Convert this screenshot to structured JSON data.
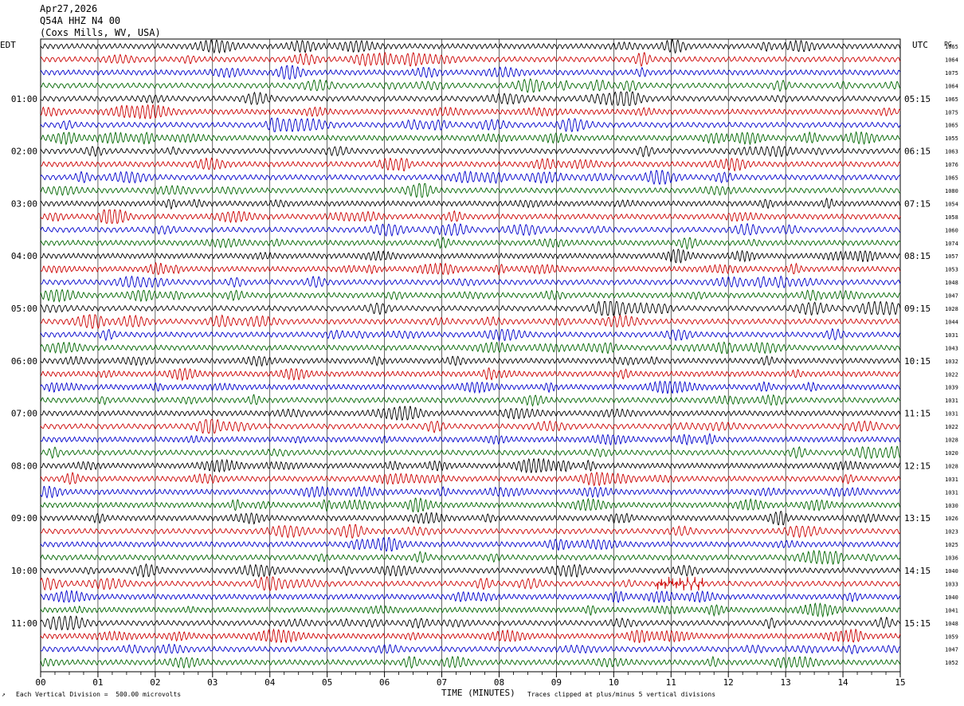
{
  "header": {
    "date": "Apr27,2026",
    "station": "Q54A HHZ N4 00",
    "location": "(Coxs Mills, WV, USA)"
  },
  "left_zone_label": "EDT",
  "right_zone_label": "UTC",
  "right_col_label": "PG",
  "xlabel": "TIME (MINUTES)",
  "scale_note": "Each Vertical Division =  500.00 microvolts",
  "clip_note": "Traces clipped at plus/minus 5 vertical divisions",
  "colors": {
    "trace_cycle": [
      "#000000",
      "#cc0000",
      "#0000cc",
      "#006600"
    ],
    "grid": "#000000"
  },
  "chart_data": {
    "type": "line",
    "title": "Q54A HHZ N4 00",
    "xlim": [
      0,
      15
    ],
    "x_ticks": [
      "00",
      "01",
      "02",
      "03",
      "04",
      "05",
      "06",
      "07",
      "08",
      "09",
      "10",
      "11",
      "12",
      "13",
      "14",
      "15"
    ],
    "trace_count": 48,
    "left_hour_labels": [
      "01:00",
      "02:00",
      "03:00",
      "04:00",
      "05:00",
      "06:00",
      "07:00",
      "08:00",
      "09:00",
      "10:00",
      "11:00"
    ],
    "right_hour_labels": [
      "05:15",
      "06:15",
      "07:15",
      "08:15",
      "09:15",
      "10:15",
      "11:15",
      "12:15",
      "13:15",
      "14:15",
      "15:15"
    ],
    "right_values": [
      "1065",
      "1064",
      "1075",
      "1064",
      "1065",
      "1075",
      "1065",
      "1055",
      "1063",
      "1076",
      "1065",
      "1080",
      "1054",
      "1058",
      "1060",
      "1074",
      "1057",
      "1053",
      "1048",
      "1047",
      "1028",
      "1044",
      "1031",
      "1043",
      "1032",
      "1022",
      "1039",
      "1031",
      "1031",
      "1022",
      "1028",
      "1020",
      "1028",
      "1031",
      "1031",
      "1030",
      "1026",
      "1023",
      "1025",
      "1036",
      "1040",
      "1033",
      "1040",
      "1041",
      "1048",
      "1059",
      "1047",
      "1052"
    ],
    "events": [
      {
        "trace": 41,
        "minute_start": 10.75,
        "minute_end": 11.55,
        "note": "small local event"
      }
    ]
  }
}
